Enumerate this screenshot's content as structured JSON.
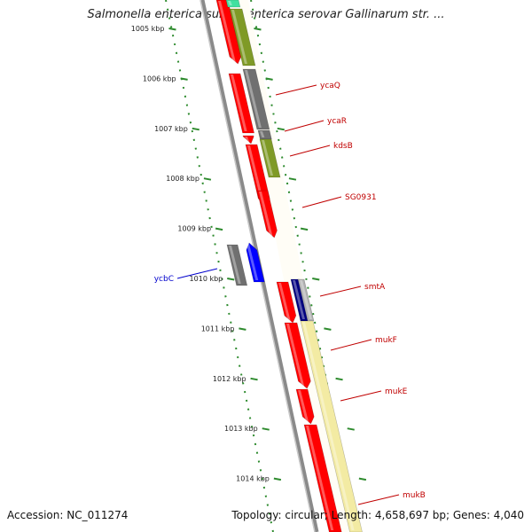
{
  "title": "Salmonella enterica subsp. enterica serovar Gallinarum str. ...",
  "footer": {
    "accession": "Accession: NC_011274",
    "info": "Topology: circular; Length: 4,658,697 bp; Genes: 4,040"
  },
  "scale_labels": [
    "1005 kbp",
    "1006 kbp",
    "1007 kbp",
    "1008 kbp",
    "1009 kbp",
    "1010 kbp",
    "1011 kbp",
    "1012 kbp",
    "1013 kbp",
    "1014 kbp"
  ],
  "colors": {
    "cds_red": "#ff0000",
    "gray": "#707070",
    "olive": "#7f9a26",
    "blue": "#0000ff",
    "navy": "#000080",
    "pale_yellow": "#f3eba3",
    "teal": "#22dd99",
    "tick_green": "#2e8b2e",
    "label_red": "#c00000",
    "label_blue": "#0000cc"
  },
  "genes": [
    {
      "name": "ycaQ",
      "color": "label_red"
    },
    {
      "name": "ycaR",
      "color": "label_red"
    },
    {
      "name": "kdsB",
      "color": "label_red"
    },
    {
      "name": "SG0931",
      "color": "label_red"
    },
    {
      "name": "smtA",
      "color": "label_red"
    },
    {
      "name": "mukF",
      "color": "label_red"
    },
    {
      "name": "mukE",
      "color": "label_red"
    },
    {
      "name": "mukB",
      "color": "label_red"
    },
    {
      "name": "ycbC",
      "color": "label_blue"
    }
  ]
}
